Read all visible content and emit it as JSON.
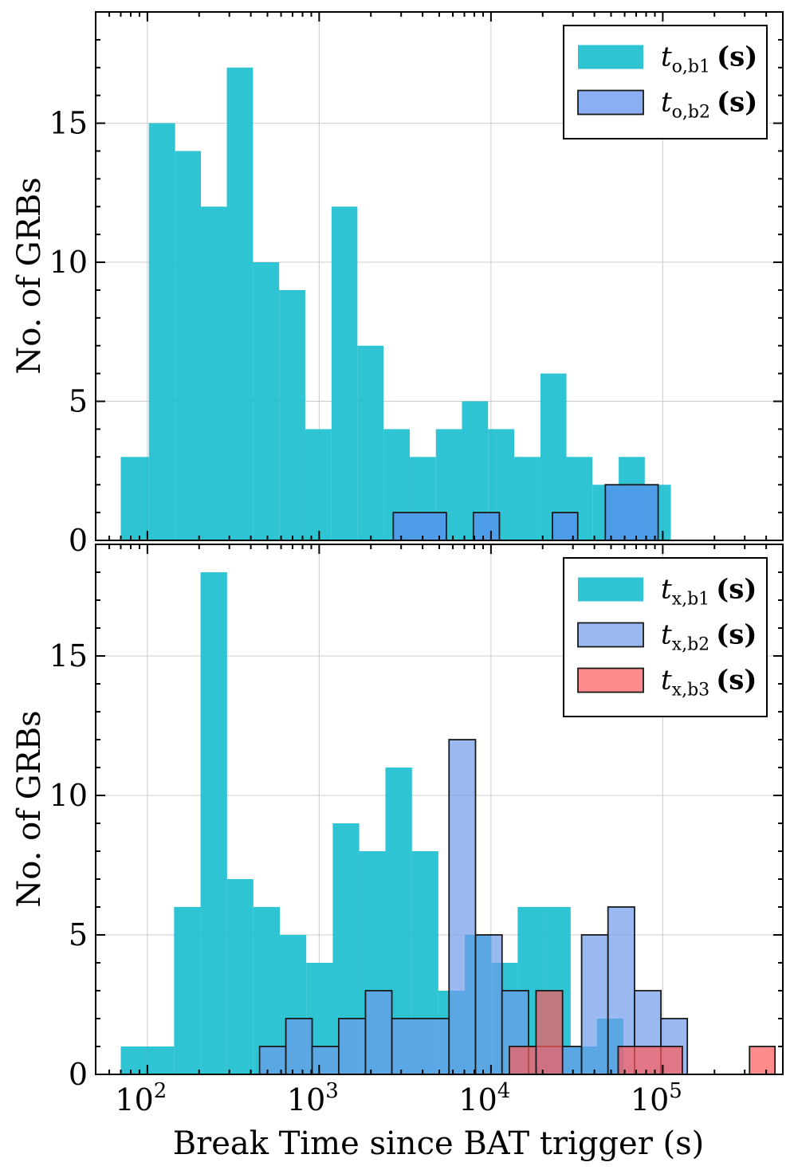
{
  "chart_data": [
    {
      "type": "histogram",
      "panel": "top",
      "xscale": "log",
      "xlim": [
        50,
        500000
      ],
      "ylim": [
        0,
        19
      ],
      "yticks": [
        0,
        5,
        10,
        15
      ],
      "ytick_labels": [
        "0",
        "5",
        "10",
        "15"
      ],
      "ylabel": "No. of GRBs",
      "grid": true,
      "legend_position": "top-right",
      "series": [
        {
          "name": "t_o,b1 (s)",
          "label_main": "t",
          "label_sub": "o,b1",
          "label_unit": "(s)",
          "color": "#17becf",
          "edge": "none",
          "bins": [
            {
              "lo": 70,
              "hi": 102,
              "count": 3
            },
            {
              "lo": 102,
              "hi": 145,
              "count": 15
            },
            {
              "lo": 145,
              "hi": 205,
              "count": 14
            },
            {
              "lo": 205,
              "hi": 290,
              "count": 12
            },
            {
              "lo": 290,
              "hi": 412,
              "count": 17
            },
            {
              "lo": 412,
              "hi": 585,
              "count": 10
            },
            {
              "lo": 585,
              "hi": 830,
              "count": 9
            },
            {
              "lo": 830,
              "hi": 1180,
              "count": 4
            },
            {
              "lo": 1180,
              "hi": 1670,
              "count": 12
            },
            {
              "lo": 1670,
              "hi": 2370,
              "count": 7
            },
            {
              "lo": 2370,
              "hi": 3370,
              "count": 4
            },
            {
              "lo": 3370,
              "hi": 4780,
              "count": 3
            },
            {
              "lo": 4780,
              "hi": 6780,
              "count": 4
            },
            {
              "lo": 6780,
              "hi": 9620,
              "count": 5
            },
            {
              "lo": 9620,
              "hi": 13650,
              "count": 4
            },
            {
              "lo": 13650,
              "hi": 19400,
              "count": 3
            },
            {
              "lo": 19400,
              "hi": 27500,
              "count": 6
            },
            {
              "lo": 27500,
              "hi": 39000,
              "count": 3
            },
            {
              "lo": 39000,
              "hi": 55400,
              "count": 2
            },
            {
              "lo": 55400,
              "hi": 78600,
              "count": 3
            },
            {
              "lo": 78600,
              "hi": 111500,
              "count": 2
            }
          ]
        },
        {
          "name": "t_o,b2 (s)",
          "label_main": "t",
          "label_sub": "o,b2",
          "label_unit": "(s)",
          "color": "#5b8cef",
          "edge": "#1a1a1a",
          "bins": [
            {
              "lo": 2700,
              "hi": 5500,
              "count": 1
            },
            {
              "lo": 7900,
              "hi": 11200,
              "count": 1
            },
            {
              "lo": 22800,
              "hi": 32000,
              "count": 1
            },
            {
              "lo": 46300,
              "hi": 94000,
              "count": 2
            }
          ]
        }
      ]
    },
    {
      "type": "histogram",
      "panel": "bottom",
      "xscale": "log",
      "xlim": [
        50,
        500000
      ],
      "ylim": [
        0,
        19
      ],
      "yticks": [
        0,
        5,
        10,
        15
      ],
      "ytick_labels": [
        "0",
        "5",
        "10",
        "15"
      ],
      "xticks": [
        100,
        1000,
        10000,
        100000
      ],
      "xtick_base": "10",
      "xtick_exps": [
        "2",
        "3",
        "4",
        "5"
      ],
      "xlabel": "Break Time since BAT trigger (s)",
      "ylabel": "No. of GRBs",
      "grid": true,
      "legend_position": "top-right",
      "series": [
        {
          "name": "t_x,b1 (s)",
          "label_main": "t",
          "label_sub": "x,b1",
          "label_unit": "(s)",
          "color": "#17becf",
          "edge": "none",
          "bins": [
            {
              "lo": 70,
              "hi": 100,
              "count": 1
            },
            {
              "lo": 100,
              "hi": 143,
              "count": 1
            },
            {
              "lo": 143,
              "hi": 204,
              "count": 6
            },
            {
              "lo": 204,
              "hi": 291,
              "count": 18
            },
            {
              "lo": 291,
              "hi": 414,
              "count": 7
            },
            {
              "lo": 414,
              "hi": 590,
              "count": 6
            },
            {
              "lo": 590,
              "hi": 841,
              "count": 5
            },
            {
              "lo": 841,
              "hi": 1200,
              "count": 4
            },
            {
              "lo": 1200,
              "hi": 1710,
              "count": 9
            },
            {
              "lo": 1710,
              "hi": 2430,
              "count": 8
            },
            {
              "lo": 2430,
              "hi": 3470,
              "count": 11
            },
            {
              "lo": 3470,
              "hi": 4940,
              "count": 8
            },
            {
              "lo": 4940,
              "hi": 7040,
              "count": 3
            },
            {
              "lo": 7040,
              "hi": 10040,
              "count": 5
            },
            {
              "lo": 10040,
              "hi": 14300,
              "count": 4
            },
            {
              "lo": 14300,
              "hi": 20400,
              "count": 6
            },
            {
              "lo": 20400,
              "hi": 29100,
              "count": 6
            },
            {
              "lo": 29100,
              "hi": 41400,
              "count": 1
            },
            {
              "lo": 41400,
              "hi": 59000,
              "count": 2
            }
          ]
        },
        {
          "name": "t_x,b2 (s)",
          "label_main": "t",
          "label_sub": "x,b2",
          "label_unit": "(s)",
          "color": "#6e9bea",
          "edge": "#1a1a1a",
          "bins": [
            {
              "lo": 450,
              "hi": 640,
              "count": 1
            },
            {
              "lo": 640,
              "hi": 910,
              "count": 2
            },
            {
              "lo": 910,
              "hi": 1300,
              "count": 1
            },
            {
              "lo": 1300,
              "hi": 1860,
              "count": 2
            },
            {
              "lo": 1860,
              "hi": 2650,
              "count": 3
            },
            {
              "lo": 2650,
              "hi": 5700,
              "count": 2
            },
            {
              "lo": 5700,
              "hi": 8130,
              "count": 12
            },
            {
              "lo": 8130,
              "hi": 11600,
              "count": 5
            },
            {
              "lo": 11600,
              "hi": 16550,
              "count": 3
            },
            {
              "lo": 16550,
              "hi": 33700,
              "count": 1
            },
            {
              "lo": 33700,
              "hi": 48000,
              "count": 5
            },
            {
              "lo": 48000,
              "hi": 68500,
              "count": 6
            },
            {
              "lo": 68500,
              "hi": 97600,
              "count": 3
            },
            {
              "lo": 97600,
              "hi": 139000,
              "count": 2
            }
          ]
        },
        {
          "name": "t_x,b3 (s)",
          "label_main": "t",
          "label_sub": "x,b3",
          "label_unit": "(s)",
          "color": "#ff5a5a",
          "edge": "#1a1a1a",
          "bins": [
            {
              "lo": 12800,
              "hi": 18300,
              "count": 1
            },
            {
              "lo": 18300,
              "hi": 26100,
              "count": 3
            },
            {
              "lo": 55000,
              "hi": 130000,
              "count": 1
            },
            {
              "lo": 320000,
              "hi": 450000,
              "count": 1
            }
          ]
        }
      ]
    }
  ]
}
